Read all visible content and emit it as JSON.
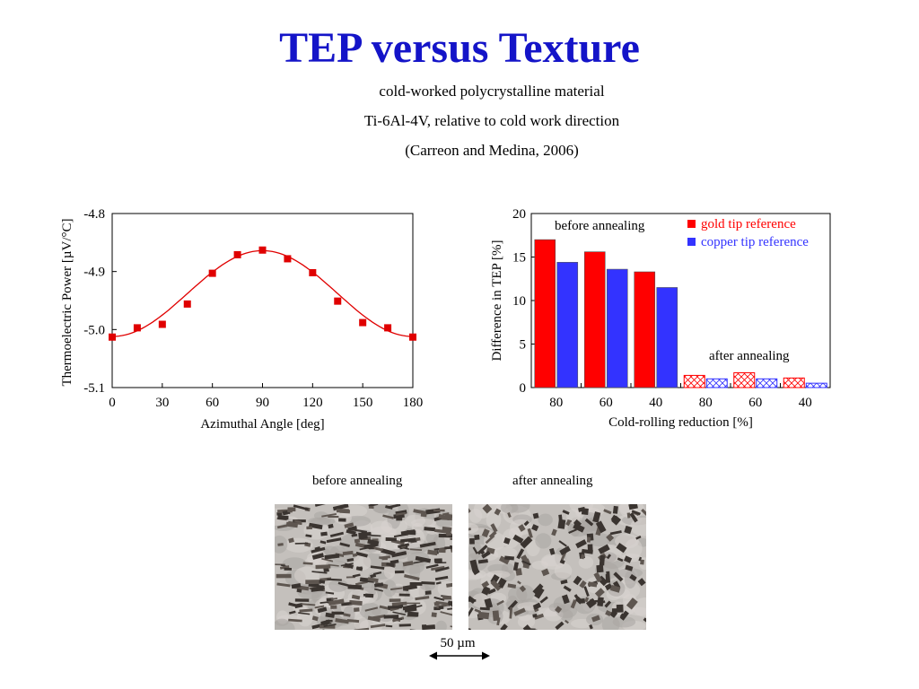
{
  "header": {
    "title": "TEP versus Texture",
    "subtitle_lines": [
      "cold-worked polycrystalline material",
      "Ti-6Al-4V, relative to cold work direction",
      "(Carreon and Medina, 2006)"
    ]
  },
  "chart_data": [
    {
      "type": "scatter",
      "xlabel": "Azimuthal Angle [deg]",
      "ylabel": "Thermoelectric Power [µV/°C]",
      "xlim": [
        0,
        180
      ],
      "ylim": [
        -5.1,
        -4.8
      ],
      "xticks": [
        0,
        30,
        60,
        90,
        120,
        150,
        180
      ],
      "yticks": [
        -5.1,
        -5.0,
        -4.9,
        -4.8
      ],
      "ytick_labels": [
        "-5.1",
        "-5.0",
        "-4.9",
        "-4.8"
      ],
      "grid": false,
      "series": [
        {
          "values_x": [
            0,
            15,
            30,
            45,
            60,
            75,
            90,
            105,
            120,
            135,
            150,
            165,
            180
          ],
          "values_y": [
            -5.013,
            -4.997,
            -4.991,
            -4.956,
            -4.903,
            -4.871,
            -4.863,
            -4.878,
            -4.902,
            -4.951,
            -4.988,
            -4.997,
            -5.013
          ],
          "color": "#e00000"
        }
      ],
      "fit": {
        "kind": "cosine",
        "center": -4.938,
        "amplitude": -0.074,
        "color": "#e00000"
      }
    },
    {
      "type": "bar",
      "xlabel": "Cold-rolling reduction [%]",
      "ylabel": "Difference in TEP [%]",
      "ylim": [
        0,
        20
      ],
      "yticks": [
        0,
        5,
        10,
        15,
        20
      ],
      "categories": [
        "80",
        "60",
        "40",
        "80",
        "60",
        "40"
      ],
      "grid": false,
      "legend_position": "top-right",
      "series": [
        {
          "name": "gold tip reference",
          "color": "#ff0000",
          "values": [
            17.0,
            15.6,
            13.3,
            1.4,
            1.7,
            1.1
          ]
        },
        {
          "name": "copper tip reference",
          "color": "#3333ff",
          "values": [
            14.4,
            13.6,
            11.5,
            1.0,
            1.0,
            0.5
          ]
        }
      ],
      "hatched_groups": [
        3,
        4,
        5
      ],
      "annotations": [
        "before annealing",
        "after annealing"
      ]
    }
  ],
  "micrographs": {
    "captions": [
      "before annealing",
      "after annealing"
    ],
    "scale_bar": "50 µm"
  }
}
